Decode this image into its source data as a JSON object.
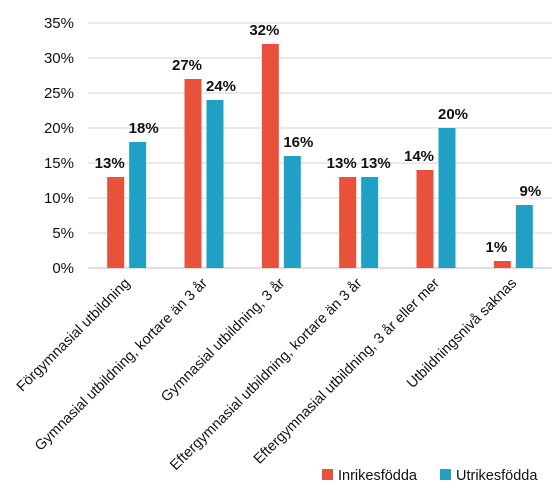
{
  "chart_data": {
    "type": "bar",
    "categories": [
      "Förgymnasial utbildning",
      "Gymnasial utbildning, kortare än 3 år",
      "Gymnasial utbildning, 3 år",
      "Eftergymnasial utbildning, kortare än 3 år",
      "Eftergymnasial utbildning, 3 år eller mer",
      "Utbildningsnivå saknas"
    ],
    "series": [
      {
        "name": "Inrikesfödda",
        "color": "#e8513a",
        "values": [
          13,
          27,
          32,
          13,
          14,
          1
        ]
      },
      {
        "name": "Utrikesfödda",
        "color": "#1fa0c4",
        "values": [
          18,
          24,
          16,
          13,
          20,
          9
        ]
      }
    ],
    "data_labels": [
      [
        "13%",
        "27%",
        "32%",
        "13%",
        "14%",
        "1%"
      ],
      [
        "18%",
        "24%",
        "16%",
        "13%",
        "20%",
        "9%"
      ]
    ],
    "ylim": [
      0,
      35
    ],
    "yticks": [
      "0%",
      "5%",
      "10%",
      "15%",
      "20%",
      "25%",
      "30%",
      "35%"
    ],
    "grid": true,
    "legend_position": "bottom-right",
    "title": "",
    "xlabel": "",
    "ylabel": ""
  }
}
